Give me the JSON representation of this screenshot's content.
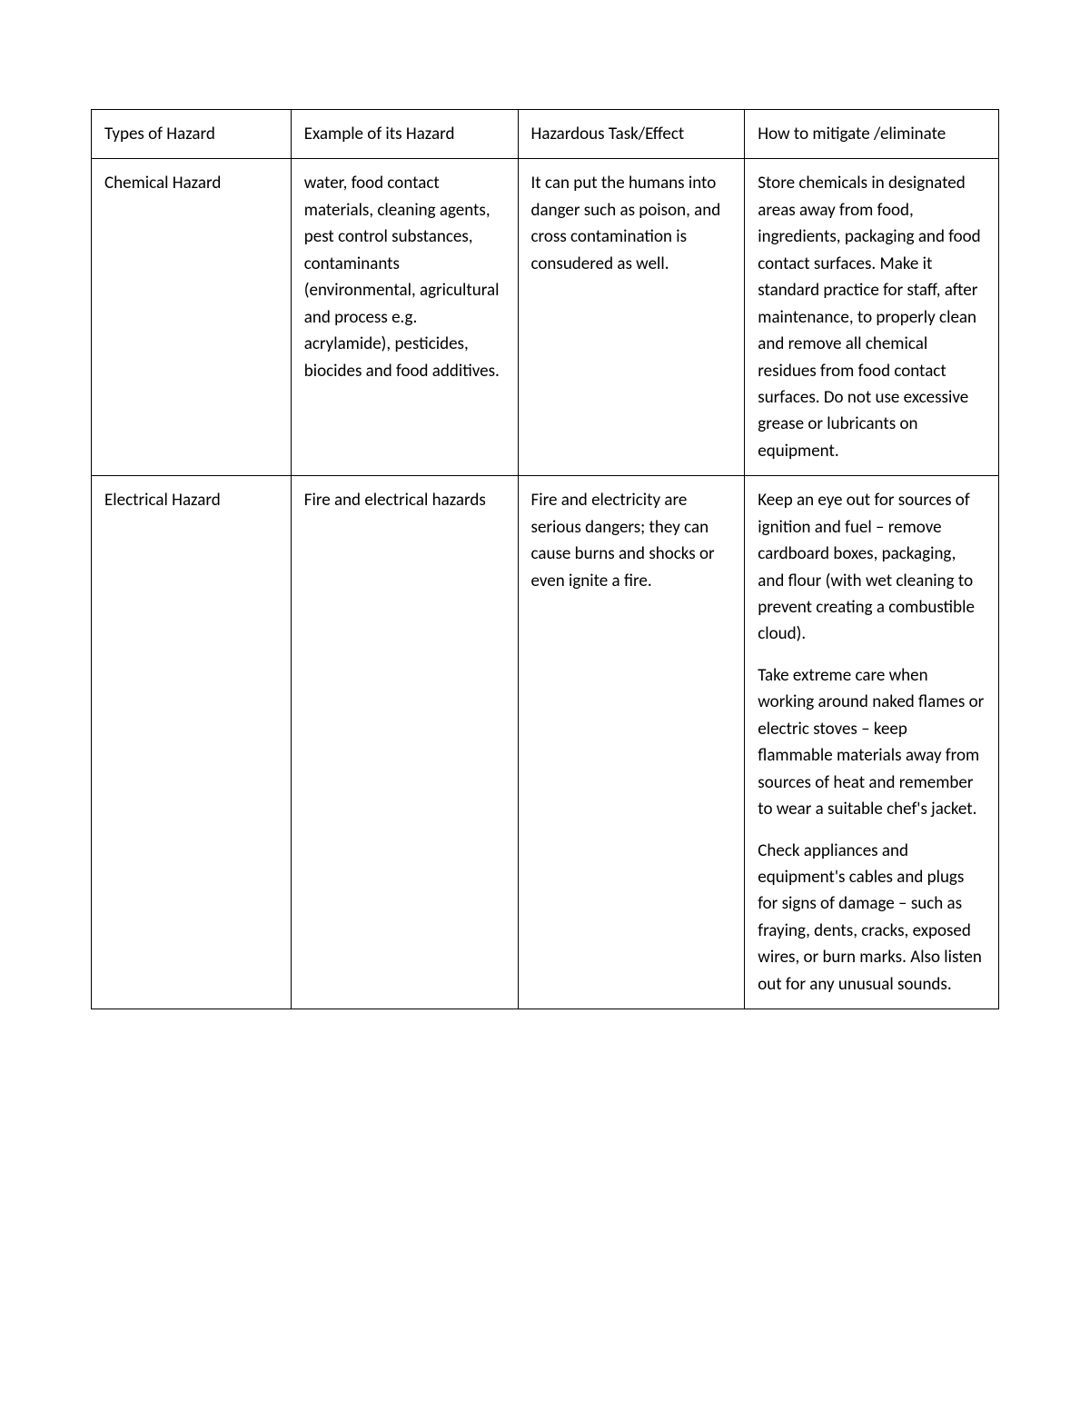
{
  "table": {
    "columns": [
      "Types of Hazard",
      "Example of its Hazard",
      "Hazardous Task/Effect",
      "How to mitigate /eliminate"
    ],
    "rows": [
      {
        "type": "Chemical Hazard",
        "example": "water, food contact materials, cleaning agents, pest control substances, contaminants (environmental, agricultural and process e.g. acrylamide), pesticides, biocides and food additives.",
        "effect": "It can put the humans into  danger such as poison, and cross contamination is consudered as well.",
        "mitigate": [
          "Store chemicals in designated areas away from food, ingredients, packaging and food contact surfaces. Make it standard practice for staff, after maintenance, to properly clean and remove all chemical residues from food contact surfaces. Do not use excessive grease or lubricants on equipment."
        ]
      },
      {
        "type": "Electrical Hazard",
        "example": "Fire and electrical hazards",
        "effect": "Fire and electricity are serious dangers; they can cause burns and shocks or even ignite a fire.",
        "mitigate": [
          "Keep an eye out for sources of ignition and fuel – remove cardboard boxes, packaging, and flour (with wet cleaning to prevent creating a combustible cloud).",
          "Take extreme care when working around naked flames or electric stoves – keep flammable materials away from sources of heat and remember to wear a suitable chef's jacket.",
          "Check appliances and equipment's cables and plugs for signs of damage – such as fraying, dents, cracks, exposed wires, or burn marks. Also listen out for any unusual sounds."
        ]
      }
    ],
    "styling": {
      "border_color": "#000000",
      "border_width": 1.5,
      "background_color": "#ffffff",
      "font_size": 19,
      "text_color": "#000000",
      "line_height": 1.55,
      "cell_padding": "12px 14px",
      "column_widths": [
        "22%",
        "25%",
        "25%",
        "28%"
      ]
    }
  }
}
